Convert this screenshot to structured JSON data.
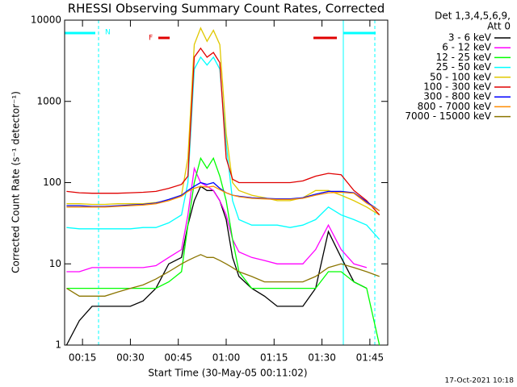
{
  "chart_data": {
    "type": "line",
    "title": "RHESSI Observing Summary Count Rates, Corrected",
    "x_label": "Start Time (30-May-05 00:11:02)",
    "y_label": "Corrected Count Rate (s⁻¹ detector⁻¹)",
    "legend_title": [
      "Det 1,3,4,5,6,9,",
      "Att 0"
    ],
    "legend": "right",
    "annotations": [
      "N",
      "F"
    ],
    "footer": "17-Oct-2021 10:18",
    "log_y": true,
    "xlim": [
      9.4,
      110.6
    ],
    "ylim": [
      1,
      10000
    ],
    "xticks": [
      {
        "value": 15,
        "label": "00:15"
      },
      {
        "value": 30,
        "label": "00:30"
      },
      {
        "value": 45,
        "label": "00:45"
      },
      {
        "value": 60,
        "label": "01:00"
      },
      {
        "value": 75,
        "label": "01:15"
      },
      {
        "value": 90,
        "label": "01:30"
      },
      {
        "value": 105,
        "label": "01:45"
      }
    ],
    "yticks": [
      1,
      10,
      100,
      1000,
      10000
    ],
    "x": [
      10,
      14,
      18,
      22,
      26,
      30,
      34,
      38,
      42,
      46,
      48,
      50,
      52,
      54,
      56,
      58,
      60,
      62,
      64,
      68,
      72,
      76,
      80,
      84,
      88,
      92,
      96,
      100,
      104,
      108
    ],
    "series": [
      {
        "name": "3 - 6 keV",
        "color": "#000000",
        "values": [
          1,
          2,
          3,
          3,
          3,
          3,
          3.5,
          5,
          10,
          12,
          30,
          60,
          90,
          80,
          80,
          60,
          35,
          12,
          7,
          5,
          4,
          3,
          3,
          3,
          5,
          25,
          12,
          6,
          5,
          null
        ]
      },
      {
        "name": "6 - 12 keV",
        "color": "#ff00ff",
        "values": [
          8,
          8,
          9,
          9,
          9,
          9,
          9,
          9.5,
          12,
          15,
          40,
          150,
          100,
          90,
          80,
          60,
          40,
          20,
          14,
          12,
          11,
          10,
          10,
          10,
          15,
          30,
          15,
          10,
          9,
          null
        ]
      },
      {
        "name": "12 - 25 keV",
        "color": "#00ff00",
        "values": [
          5,
          5,
          5,
          5,
          5,
          5,
          5,
          5,
          6,
          8,
          30,
          100,
          200,
          150,
          200,
          120,
          60,
          20,
          8,
          5,
          5,
          5,
          5,
          5,
          5,
          8,
          8,
          6,
          5,
          1
        ]
      },
      {
        "name": "25 - 50 keV",
        "color": "#00ffff",
        "values": [
          28,
          27,
          27,
          27,
          27,
          27,
          28,
          28,
          32,
          40,
          100,
          2500,
          3500,
          2800,
          3500,
          2500,
          300,
          60,
          35,
          30,
          30,
          30,
          28,
          30,
          35,
          50,
          40,
          35,
          30,
          20
        ]
      },
      {
        "name": "50 - 100 keV",
        "color": "#e0c800",
        "values": [
          55,
          55,
          54,
          54,
          55,
          55,
          55,
          57,
          60,
          70,
          200,
          5000,
          8000,
          5500,
          7500,
          5000,
          400,
          100,
          80,
          70,
          65,
          60,
          60,
          65,
          80,
          80,
          70,
          60,
          50,
          40
        ]
      },
      {
        "name": "100 - 300 keV",
        "color": "#e00000",
        "values": [
          78,
          75,
          74,
          74,
          74,
          75,
          76,
          78,
          85,
          95,
          120,
          3500,
          4500,
          3500,
          4000,
          3000,
          200,
          110,
          100,
          100,
          100,
          100,
          100,
          105,
          120,
          130,
          125,
          80,
          60,
          40
        ]
      },
      {
        "name": "300 - 800 keV",
        "color": "#0000ff",
        "values": [
          52,
          52,
          51,
          51,
          52,
          53,
          54,
          56,
          62,
          70,
          80,
          90,
          100,
          95,
          100,
          85,
          75,
          70,
          68,
          65,
          64,
          63,
          63,
          65,
          72,
          78,
          78,
          75,
          58,
          45
        ]
      },
      {
        "name": "800 - 7000 keV",
        "color": "#ff8c00",
        "values": [
          50,
          50,
          50,
          50,
          51,
          52,
          53,
          55,
          60,
          68,
          78,
          85,
          90,
          88,
          90,
          82,
          75,
          70,
          67,
          64,
          63,
          62,
          62,
          64,
          70,
          75,
          76,
          74,
          56,
          45
        ]
      },
      {
        "name": "7000 - 15000 keV",
        "color": "#8b7500",
        "values": [
          5,
          4,
          4,
          4,
          4.5,
          5,
          5.5,
          6.5,
          8,
          10,
          11,
          12,
          13,
          12,
          12,
          11,
          10,
          9,
          8,
          7,
          6,
          6,
          6,
          6,
          7,
          9,
          10,
          9,
          8,
          7
        ]
      }
    ]
  }
}
